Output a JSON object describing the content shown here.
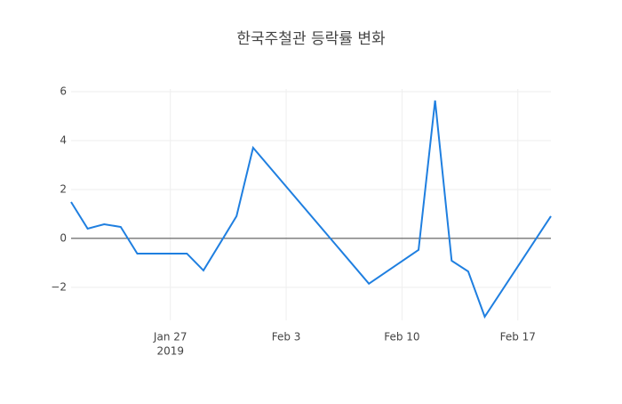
{
  "chart_data": {
    "type": "line",
    "title": "한국주철관 등락률 변화",
    "x": [
      "2019-01-21",
      "2019-01-22",
      "2019-01-23",
      "2019-01-24",
      "2019-01-25",
      "2019-01-28",
      "2019-01-29",
      "2019-01-31",
      "2019-02-01",
      "2019-02-08",
      "2019-02-11",
      "2019-02-12",
      "2019-02-13",
      "2019-02-14",
      "2019-02-15",
      "2019-02-19"
    ],
    "series": [
      {
        "color": "#1f7fe0",
        "values": [
          1.49,
          0.4,
          0.58,
          0.47,
          -0.62,
          -0.62,
          -1.31,
          0.91,
          3.71,
          -1.85,
          -0.47,
          5.64,
          -0.91,
          -1.35,
          -3.2,
          0.91
        ]
      }
    ],
    "xlim": [
      "2019-01-21",
      "2019-02-19"
    ],
    "xticks": [
      {
        "value": "2019-01-27",
        "label": "Jan 27"
      },
      {
        "value": "2019-02-03",
        "label": "Feb 3"
      },
      {
        "value": "2019-02-10",
        "label": "Feb 10"
      },
      {
        "value": "2019-02-17",
        "label": "Feb 17"
      }
    ],
    "xtick_year": "2019",
    "ylim": [
      -3.35,
      6.11
    ],
    "yticks": [
      {
        "value": -2,
        "label": "−2"
      },
      0,
      2,
      4,
      6
    ],
    "grid": true,
    "zero_line": true
  }
}
